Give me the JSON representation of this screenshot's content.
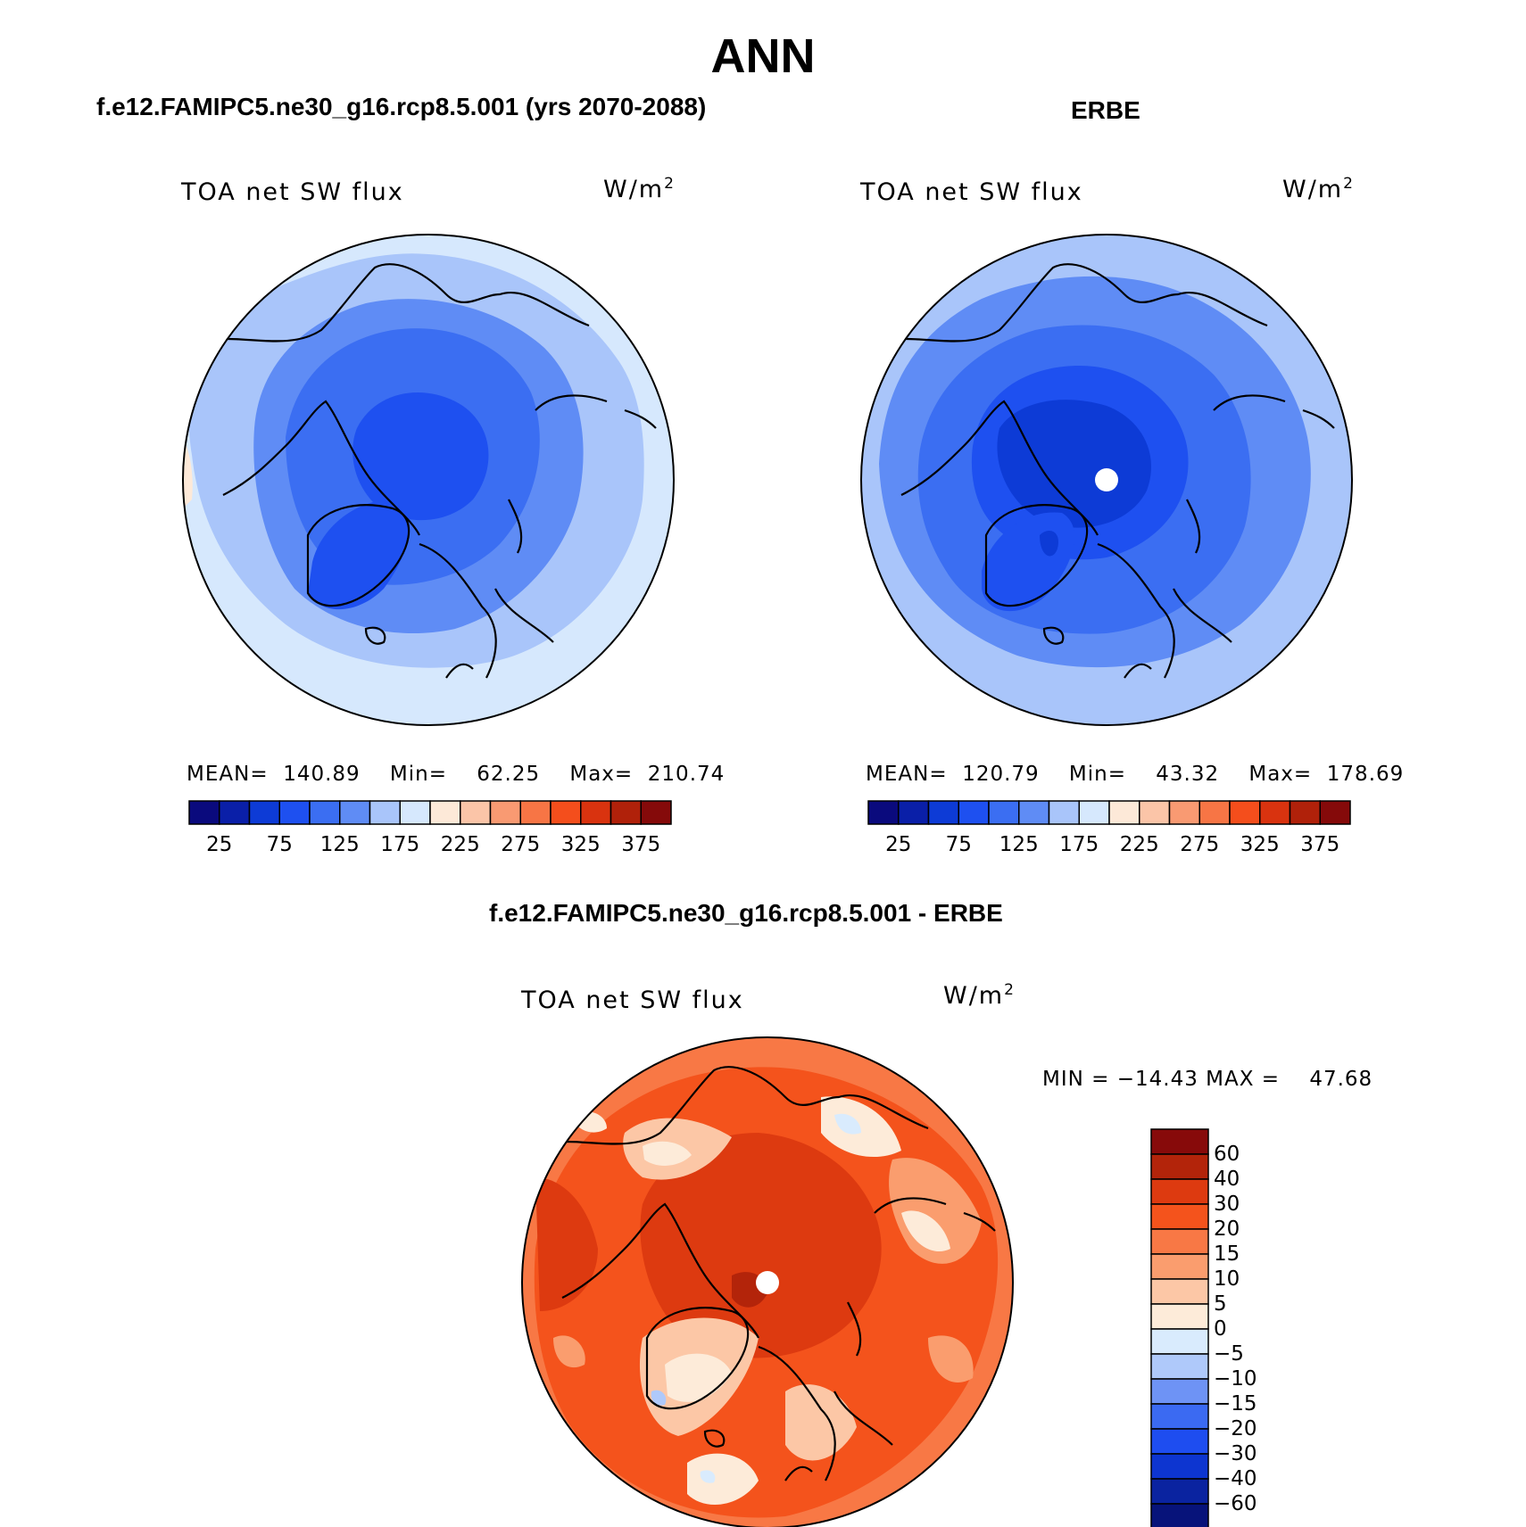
{
  "main_title": "ANN",
  "colors": {
    "land_outline": "#000000",
    "pole_dot": "#ffffff",
    "flux_scale": [
      "#0a0a7d",
      "#0a1fa8",
      "#0d3bd6",
      "#1e50f0",
      "#3b6ef2",
      "#5f8cf5",
      "#a9c5fa",
      "#d6e8fd",
      "#fde9d8",
      "#fbc5a8",
      "#f99a72",
      "#f77545",
      "#f44e1c",
      "#d9330f",
      "#b0210a",
      "#850a0a"
    ],
    "diff_scale": [
      "#07137a",
      "#0a23a0",
      "#0d35d0",
      "#1e4df0",
      "#3b6af2",
      "#6e93f5",
      "#afc9fa",
      "#d9ebfd",
      "#fdebd9",
      "#fcc7a6",
      "#fa9d6e",
      "#f87845",
      "#f4531c",
      "#dd3a10",
      "#b3240a",
      "#870a0a"
    ]
  },
  "panels": [
    {
      "id": "model",
      "title": "f.e12.FAMIPC5.ne30_g16.rcp8.5.001 (yrs 2070-2088)",
      "field_label": "TOA net SW flux",
      "units_base": "W/m",
      "units_exp": "2",
      "stats": "MEAN=  140.89    Min=    62.25    Max=  210.74",
      "colorbar_ticks": [
        "25",
        "75",
        "125",
        "175",
        "225",
        "275",
        "325",
        "375"
      ]
    },
    {
      "id": "obs",
      "title": "ERBE",
      "field_label": "TOA net SW flux",
      "units_base": "W/m",
      "units_exp": "2",
      "stats": "MEAN=  120.79    Min=    43.32    Max=  178.69",
      "colorbar_ticks": [
        "25",
        "75",
        "125",
        "175",
        "225",
        "275",
        "325",
        "375"
      ]
    },
    {
      "id": "diff",
      "title": "f.e12.FAMIPC5.ne30_g16.rcp8.5.001 - ERBE",
      "field_label": "TOA net SW flux",
      "units_base": "W/m",
      "units_exp": "2",
      "stats": "MIN = −14.43 MAX =    47.68",
      "colorbar_ticks": [
        "60",
        "40",
        "30",
        "20",
        "15",
        "10",
        "5",
        "0",
        "−5",
        "−10",
        "−15",
        "−20",
        "−30",
        "−40",
        "−60"
      ]
    }
  ]
}
